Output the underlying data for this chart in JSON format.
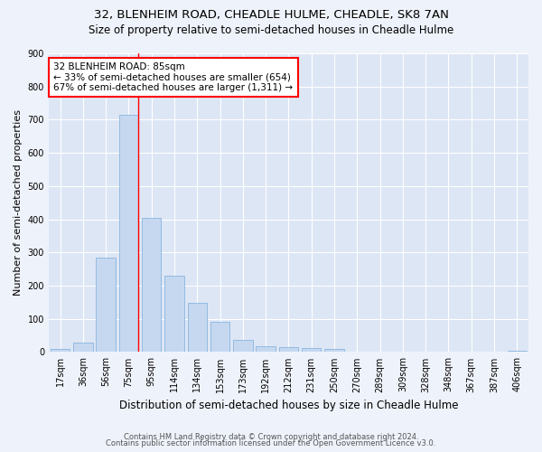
{
  "title": "32, BLENHEIM ROAD, CHEADLE HULME, CHEADLE, SK8 7AN",
  "subtitle": "Size of property relative to semi-detached houses in Cheadle Hulme",
  "xlabel": "Distribution of semi-detached houses by size in Cheadle Hulme",
  "ylabel": "Number of semi-detached properties",
  "categories": [
    "17sqm",
    "36sqm",
    "56sqm",
    "75sqm",
    "95sqm",
    "114sqm",
    "134sqm",
    "153sqm",
    "173sqm",
    "192sqm",
    "212sqm",
    "231sqm",
    "250sqm",
    "270sqm",
    "289sqm",
    "309sqm",
    "328sqm",
    "348sqm",
    "367sqm",
    "387sqm",
    "406sqm"
  ],
  "bar_values": [
    8,
    28,
    285,
    715,
    405,
    230,
    148,
    90,
    37,
    18,
    15,
    12,
    10,
    0,
    0,
    0,
    0,
    0,
    0,
    0,
    5
  ],
  "bar_color": "#c5d8f0",
  "bar_edge_color": "#7aaddb",
  "vline_x_index": 3,
  "vline_color": "red",
  "annotation_text": "32 BLENHEIM ROAD: 85sqm\n← 33% of semi-detached houses are smaller (654)\n67% of semi-detached houses are larger (1,311) →",
  "annotation_box_color": "white",
  "annotation_box_edge": "red",
  "ylim": [
    0,
    900
  ],
  "yticks": [
    0,
    100,
    200,
    300,
    400,
    500,
    600,
    700,
    800,
    900
  ],
  "footer_line1": "Contains HM Land Registry data © Crown copyright and database right 2024.",
  "footer_line2": "Contains public sector information licensed under the Open Government Licence v3.0.",
  "bg_color": "#eef2fa",
  "plot_bg_color": "#dde6f5",
  "title_fontsize": 9.5,
  "subtitle_fontsize": 8.5,
  "tick_label_fontsize": 7,
  "ylabel_fontsize": 8,
  "xlabel_fontsize": 8.5,
  "annotation_fontsize": 7.5,
  "footer_fontsize": 6
}
